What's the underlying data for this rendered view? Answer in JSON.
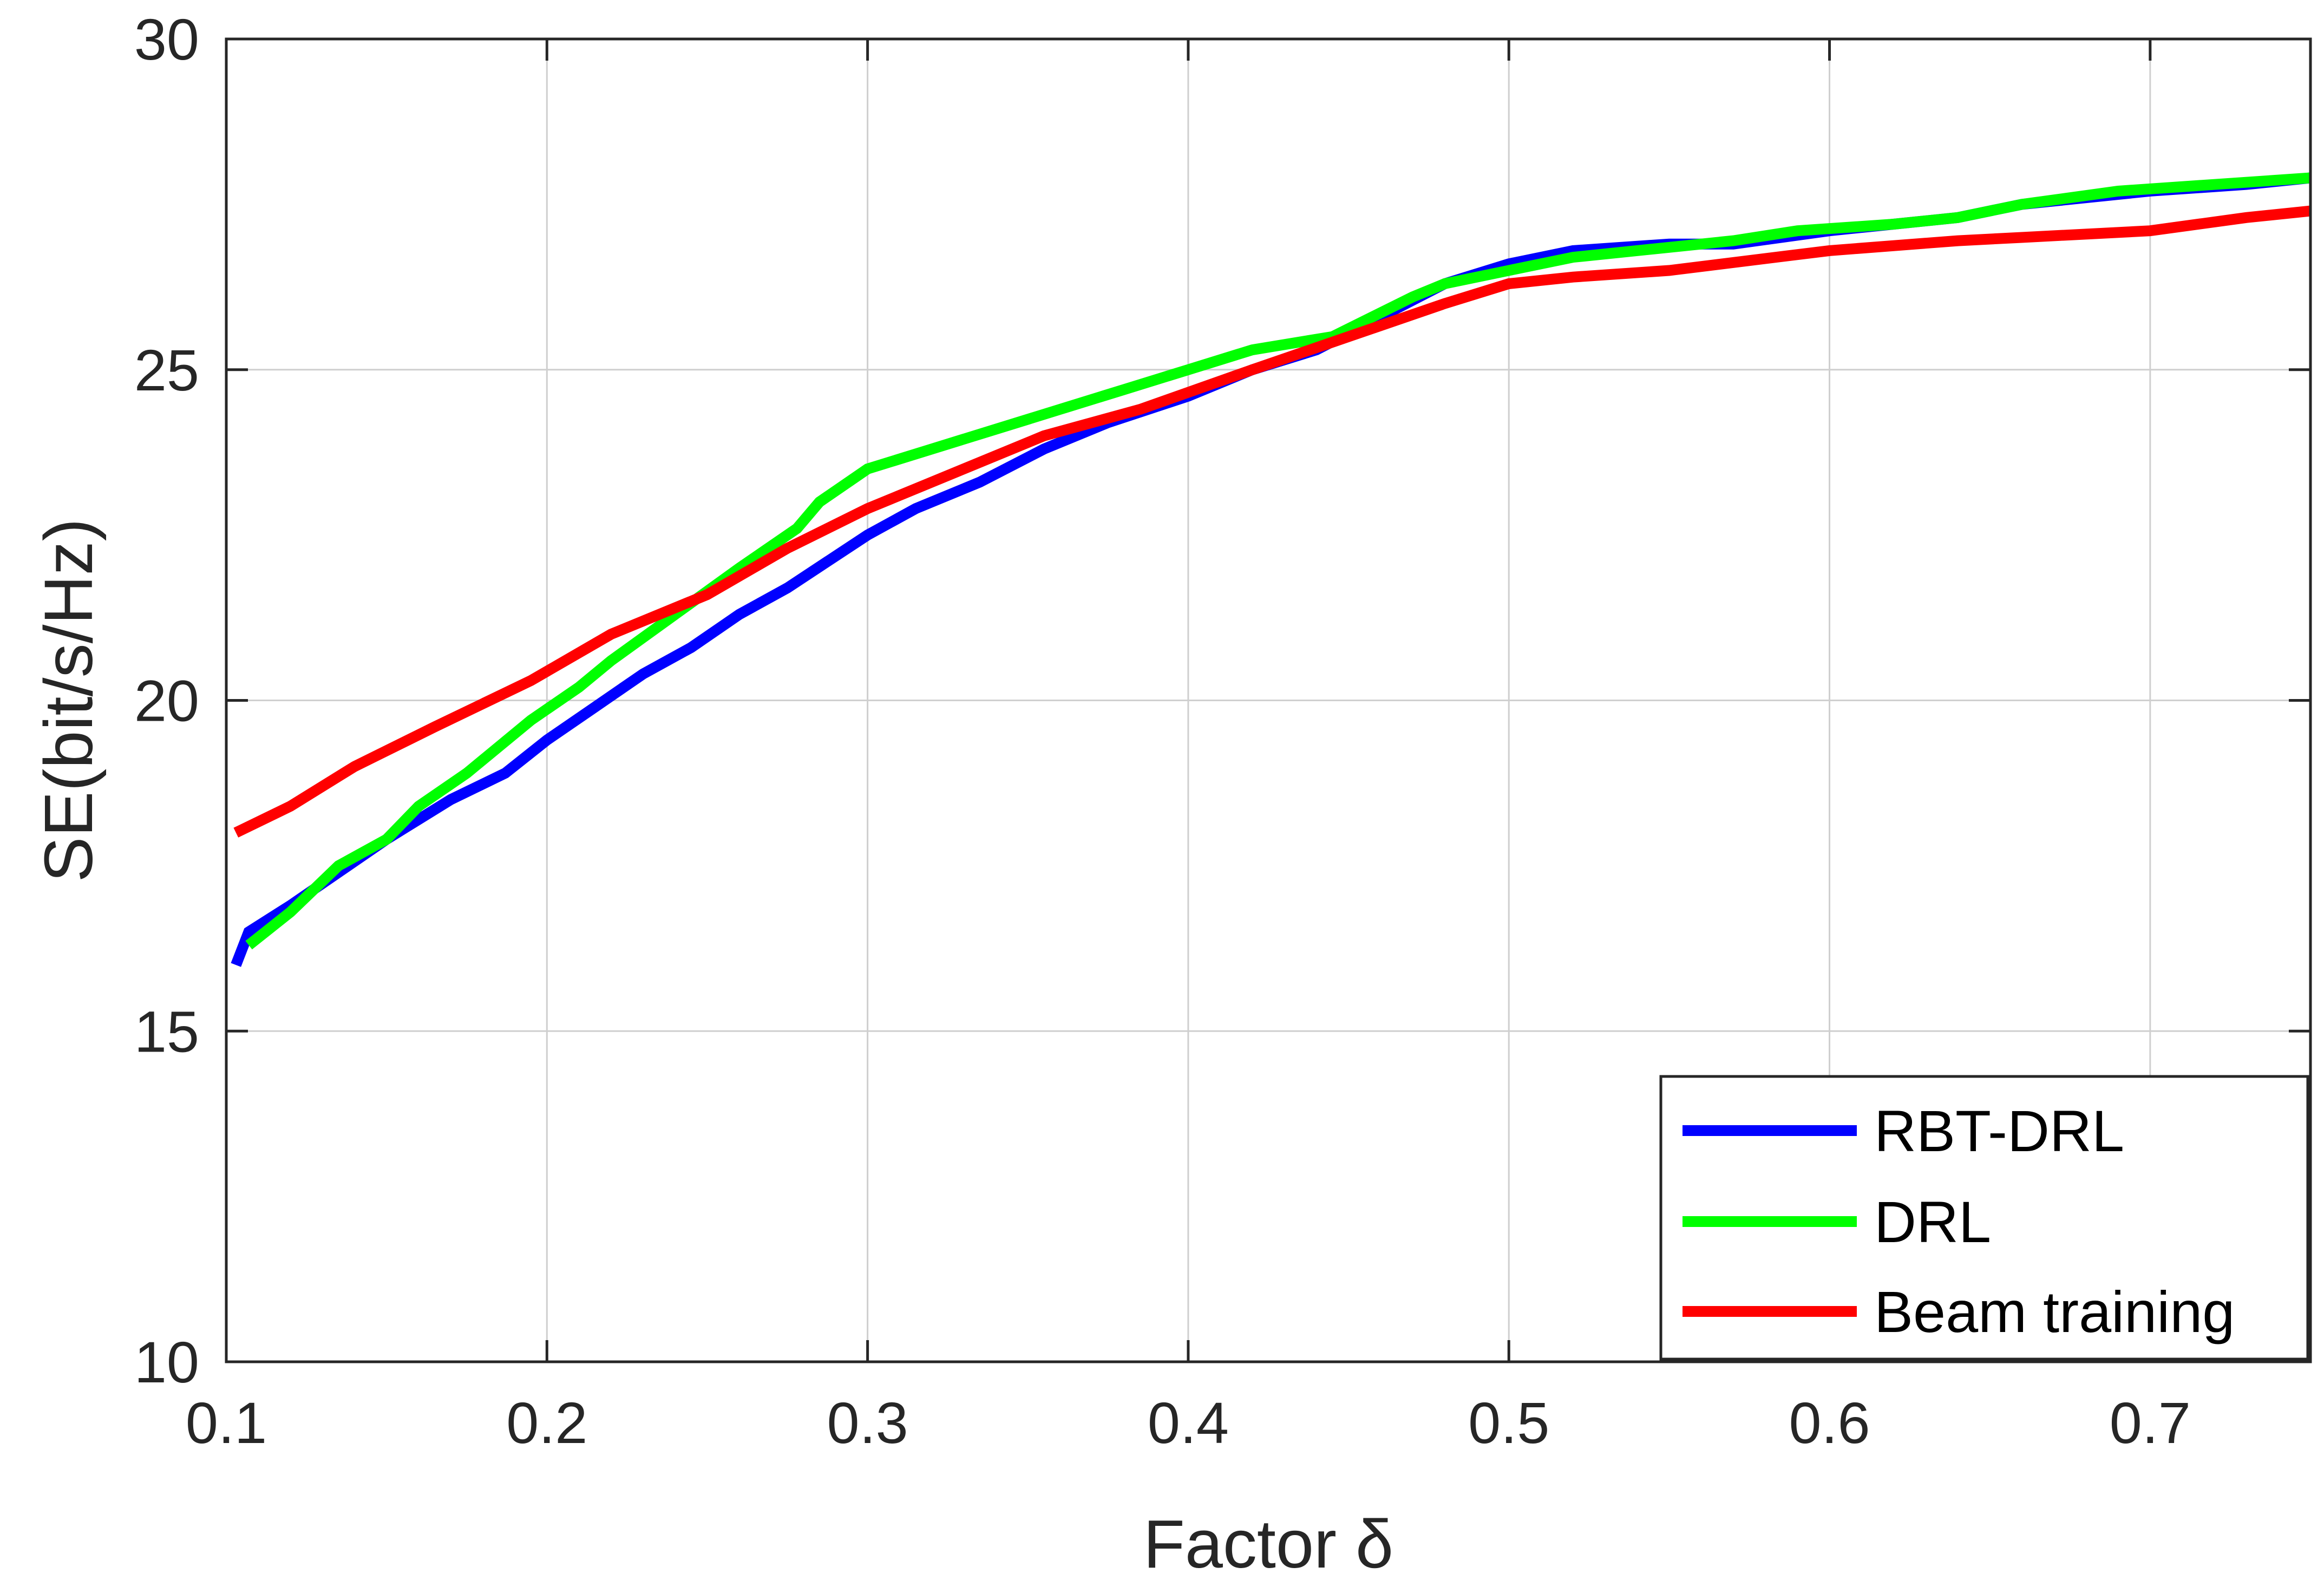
{
  "chart_data": {
    "type": "line",
    "xlabel": "Factor δ",
    "ylabel": "SE(bit/s/Hz)",
    "xlim": [
      0.1,
      0.75
    ],
    "ylim": [
      10,
      30
    ],
    "xticks": [
      0.1,
      0.2,
      0.3,
      0.4,
      0.5,
      0.6,
      0.7
    ],
    "xtick_labels": [
      "0.1",
      "0.2",
      "0.3",
      "0.4",
      "0.5",
      "0.6",
      "0.7"
    ],
    "yticks": [
      10,
      15,
      20,
      25,
      30
    ],
    "ytick_labels": [
      "10",
      "15",
      "20",
      "25",
      "30"
    ],
    "grid": true,
    "legend_position": "bottom-right",
    "series": [
      {
        "name": "RBT-DRL",
        "color": "#0000ff",
        "x": [
          0.103,
          0.107,
          0.12,
          0.135,
          0.15,
          0.17,
          0.187,
          0.2,
          0.215,
          0.23,
          0.245,
          0.26,
          0.275,
          0.3,
          0.315,
          0.335,
          0.355,
          0.375,
          0.4,
          0.42,
          0.44,
          0.46,
          0.48,
          0.5,
          0.52,
          0.55,
          0.57,
          0.6,
          0.62,
          0.64,
          0.66,
          0.7,
          0.73,
          0.75
        ],
        "y": [
          16.0,
          16.5,
          16.9,
          17.4,
          17.9,
          18.5,
          18.9,
          19.4,
          19.9,
          20.4,
          20.8,
          21.3,
          21.7,
          22.5,
          22.9,
          23.3,
          23.8,
          24.2,
          24.6,
          25.0,
          25.3,
          25.8,
          26.3,
          26.6,
          26.8,
          26.9,
          26.9,
          27.1,
          27.2,
          27.3,
          27.5,
          27.7,
          27.8,
          27.9
        ]
      },
      {
        "name": "DRL",
        "color": "#00ff00",
        "x": [
          0.107,
          0.12,
          0.135,
          0.15,
          0.16,
          0.175,
          0.195,
          0.21,
          0.22,
          0.24,
          0.26,
          0.278,
          0.285,
          0.3,
          0.32,
          0.34,
          0.36,
          0.38,
          0.4,
          0.42,
          0.445,
          0.47,
          0.48,
          0.5,
          0.52,
          0.55,
          0.57,
          0.59,
          0.62,
          0.64,
          0.66,
          0.69,
          0.72,
          0.75
        ],
        "y": [
          16.3,
          16.8,
          17.5,
          17.9,
          18.4,
          18.9,
          19.7,
          20.2,
          20.6,
          21.3,
          22.0,
          22.6,
          23.0,
          23.5,
          23.8,
          24.1,
          24.4,
          24.7,
          25.0,
          25.3,
          25.5,
          26.1,
          26.3,
          26.5,
          26.7,
          26.85,
          26.95,
          27.1,
          27.2,
          27.3,
          27.5,
          27.7,
          27.8,
          27.9
        ]
      },
      {
        "name": "Beam training",
        "color": "#ff0000",
        "x": [
          0.103,
          0.12,
          0.14,
          0.165,
          0.195,
          0.22,
          0.25,
          0.275,
          0.3,
          0.33,
          0.355,
          0.385,
          0.42,
          0.45,
          0.48,
          0.5,
          0.52,
          0.55,
          0.6,
          0.64,
          0.66,
          0.7,
          0.73,
          0.75
        ],
        "y": [
          18.0,
          18.4,
          19.0,
          19.6,
          20.3,
          21.0,
          21.6,
          22.3,
          22.9,
          23.5,
          24.0,
          24.4,
          25.0,
          25.5,
          26.0,
          26.3,
          26.4,
          26.5,
          26.8,
          26.95,
          27.0,
          27.1,
          27.3,
          27.4
        ]
      }
    ]
  }
}
